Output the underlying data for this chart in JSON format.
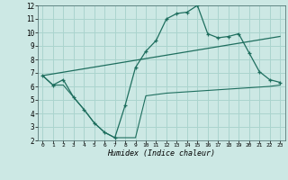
{
  "xlabel": "Humidex (Indice chaleur)",
  "bg_color": "#cce8e4",
  "grid_color": "#aad4ce",
  "line_color": "#1e6e5e",
  "xlim": [
    -0.5,
    23.5
  ],
  "ylim": [
    2,
    12
  ],
  "xticks": [
    0,
    1,
    2,
    3,
    4,
    5,
    6,
    7,
    8,
    9,
    10,
    11,
    12,
    13,
    14,
    15,
    16,
    17,
    18,
    19,
    20,
    21,
    22,
    23
  ],
  "yticks": [
    2,
    3,
    4,
    5,
    6,
    7,
    8,
    9,
    10,
    11,
    12
  ],
  "line1_x": [
    0,
    1,
    2,
    3,
    4,
    5,
    6,
    7,
    8,
    9,
    10,
    11,
    12,
    13,
    14,
    15,
    16,
    17,
    18,
    19,
    20,
    21,
    22,
    23
  ],
  "line1_y": [
    6.8,
    6.1,
    6.5,
    5.2,
    4.3,
    3.3,
    2.6,
    2.2,
    4.6,
    7.4,
    8.6,
    9.4,
    11.0,
    11.4,
    11.5,
    12.0,
    9.9,
    9.6,
    9.7,
    9.9,
    8.5,
    7.1,
    6.5,
    6.3
  ],
  "line2_x": [
    0,
    23
  ],
  "line2_y": [
    6.8,
    9.7
  ],
  "line3_x": [
    0,
    1,
    2,
    3,
    4,
    5,
    6,
    7,
    8,
    9,
    10,
    11,
    12,
    13,
    14,
    15,
    16,
    17,
    18,
    19,
    20,
    21,
    22,
    23
  ],
  "line3_y": [
    6.8,
    6.1,
    6.1,
    5.2,
    4.3,
    3.3,
    2.6,
    2.2,
    2.2,
    2.2,
    5.3,
    5.4,
    5.5,
    5.55,
    5.6,
    5.65,
    5.7,
    5.75,
    5.8,
    5.85,
    5.9,
    5.95,
    6.0,
    6.1
  ]
}
